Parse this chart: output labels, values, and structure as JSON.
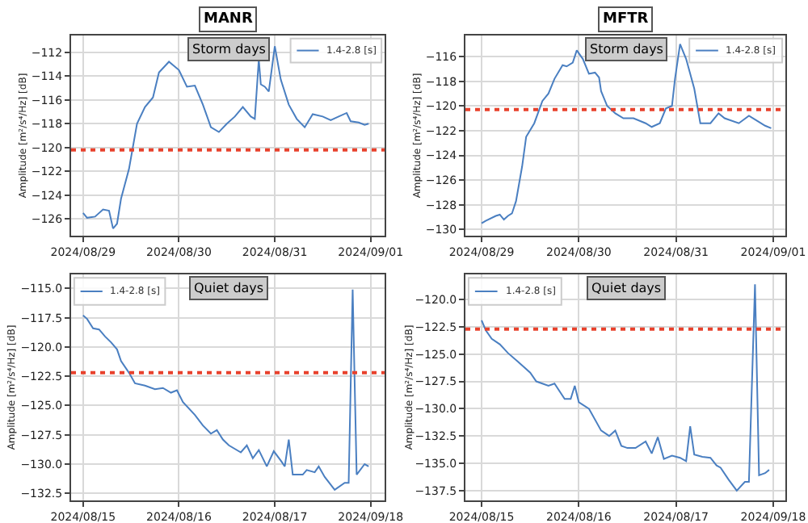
{
  "chart_data": [
    {
      "type": "line",
      "title": "MANR",
      "ylabel": "Amplitude [m²/s⁴/Hz] [dB]",
      "annotations": [
        "Storm days"
      ],
      "legend": "top right",
      "grid": true,
      "xlim": [
        "2024-08-28T21:00",
        "2024-09-01T03:30"
      ],
      "ylim": [
        -127.4,
        -110.6
      ],
      "xticks": [
        {
          "value": "2024-08-29",
          "label": "2024/08/29"
        },
        {
          "value": "2024-08-30",
          "label": "2024/08/30"
        },
        {
          "value": "2024-08-31",
          "label": "2024/08/31"
        },
        {
          "value": "2024-09-01",
          "label": "2024/09/01"
        }
      ],
      "yticks": [
        {
          "value": -126,
          "label": "−126"
        },
        {
          "value": -124,
          "label": "−124"
        },
        {
          "value": -122,
          "label": "−122"
        },
        {
          "value": -120,
          "label": "−120"
        },
        {
          "value": -118,
          "label": "−118"
        },
        {
          "value": -116,
          "label": "−116"
        },
        {
          "value": -114,
          "label": "−114"
        },
        {
          "value": -112,
          "label": "−112"
        }
      ],
      "ref_lines": [
        {
          "axis": "y",
          "value": -120.2,
          "color": "#e8412c",
          "line_style": "dotted"
        }
      ],
      "series": [
        {
          "name": "1.4-2.8 [s]",
          "color": "#4a7fc1",
          "x": [
            "2024-08-29T00:00",
            "2024-08-29T01:00",
            "2024-08-29T03:00",
            "2024-08-29T05:00",
            "2024-08-29T06:30",
            "2024-08-29T07:30",
            "2024-08-29T08:30",
            "2024-08-29T09:30",
            "2024-08-29T11:30",
            "2024-08-29T13:30",
            "2024-08-29T15:30",
            "2024-08-29T17:30",
            "2024-08-29T19:00",
            "2024-08-29T21:30",
            "2024-08-30T00:00",
            "2024-08-30T02:00",
            "2024-08-30T04:00",
            "2024-08-30T06:00",
            "2024-08-30T08:00",
            "2024-08-30T10:00",
            "2024-08-30T12:00",
            "2024-08-30T14:00",
            "2024-08-30T16:00",
            "2024-08-30T18:00",
            "2024-08-30T19:00",
            "2024-08-30T20:00",
            "2024-08-30T20:30",
            "2024-08-30T21:30",
            "2024-08-30T22:30",
            "2024-08-31T00:00",
            "2024-08-31T01:30",
            "2024-08-31T03:30",
            "2024-08-31T05:30",
            "2024-08-31T07:30",
            "2024-08-31T09:30",
            "2024-08-31T12:00",
            "2024-08-31T14:00",
            "2024-08-31T16:00",
            "2024-08-31T18:00",
            "2024-08-31T19:00",
            "2024-08-31T21:00",
            "2024-08-31T22:30",
            "2024-08-31T23:30"
          ],
          "values": [
            -125.5,
            -125.9,
            -125.8,
            -125.2,
            -125.3,
            -126.8,
            -126.4,
            -124.3,
            -121.8,
            -118.0,
            -116.6,
            -115.8,
            -113.7,
            -112.8,
            -113.5,
            -114.9,
            -114.8,
            -116.4,
            -118.3,
            -118.7,
            -118.0,
            -117.4,
            -116.6,
            -117.4,
            -117.6,
            -112.6,
            -114.7,
            -114.9,
            -115.3,
            -111.5,
            -114.3,
            -116.4,
            -117.6,
            -118.3,
            -117.2,
            -117.4,
            -117.7,
            -117.4,
            -117.1,
            -117.8,
            -117.9,
            -118.1,
            -118.0
          ]
        }
      ]
    },
    {
      "type": "line",
      "title": "MFTR",
      "ylabel": "Amplitude [m²/s⁴/Hz] [dB]",
      "annotations": [
        "Storm days"
      ],
      "legend": "top right",
      "grid": true,
      "xlim": [
        "2024-08-28T20:00",
        "2024-09-01T03:00"
      ],
      "ylim": [
        -130.5,
        -114.3
      ],
      "xticks": [
        {
          "value": "2024-08-29",
          "label": "2024/08/29"
        },
        {
          "value": "2024-08-30",
          "label": "2024/08/30"
        },
        {
          "value": "2024-08-31",
          "label": "2024/08/31"
        },
        {
          "value": "2024-09-01",
          "label": "2024/09/01"
        }
      ],
      "yticks": [
        {
          "value": -130,
          "label": "−130"
        },
        {
          "value": -128,
          "label": "−128"
        },
        {
          "value": -126,
          "label": "−126"
        },
        {
          "value": -124,
          "label": "−124"
        },
        {
          "value": -122,
          "label": "−122"
        },
        {
          "value": -120,
          "label": "−120"
        },
        {
          "value": -118,
          "label": "−118"
        },
        {
          "value": -116,
          "label": "−116"
        }
      ],
      "ref_lines": [
        {
          "axis": "y",
          "value": -120.3,
          "color": "#e8412c",
          "line_style": "dotted"
        }
      ],
      "series": [
        {
          "name": "1.4-2.8 [s]",
          "color": "#4a7fc1",
          "x": [
            "2024-08-29T00:00",
            "2024-08-29T01:00",
            "2024-08-29T03:30",
            "2024-08-29T04:30",
            "2024-08-29T05:30",
            "2024-08-29T06:30",
            "2024-08-29T07:30",
            "2024-08-29T08:30",
            "2024-08-29T10:00",
            "2024-08-29T11:00",
            "2024-08-29T13:00",
            "2024-08-29T15:00",
            "2024-08-29T16:30",
            "2024-08-29T18:00",
            "2024-08-29T20:00",
            "2024-08-29T21:00",
            "2024-08-29T22:30",
            "2024-08-29T23:30",
            "2024-08-30T01:00",
            "2024-08-30T02:30",
            "2024-08-30T04:00",
            "2024-08-30T05:00",
            "2024-08-30T05:30",
            "2024-08-30T07:00",
            "2024-08-30T09:00",
            "2024-08-30T11:00",
            "2024-08-30T13:30",
            "2024-08-30T16:30",
            "2024-08-30T18:00",
            "2024-08-30T20:00",
            "2024-08-30T21:30",
            "2024-08-30T23:00",
            "2024-08-30T23:45",
            "2024-08-31T01:00",
            "2024-08-31T02:30",
            "2024-08-31T04:30",
            "2024-08-31T06:00",
            "2024-08-31T08:30",
            "2024-08-31T10:30",
            "2024-08-31T12:00",
            "2024-08-31T15:30",
            "2024-08-31T18:00",
            "2024-08-31T20:00",
            "2024-08-31T22:00",
            "2024-08-31T23:30"
          ],
          "values": [
            -129.5,
            -129.3,
            -128.9,
            -128.8,
            -129.2,
            -128.9,
            -128.7,
            -127.7,
            -124.9,
            -122.5,
            -121.4,
            -119.6,
            -119.0,
            -117.8,
            -116.7,
            -116.8,
            -116.5,
            -115.5,
            -116.2,
            -117.4,
            -117.3,
            -117.7,
            -118.8,
            -120.0,
            -120.6,
            -121.0,
            -121.0,
            -121.4,
            -121.7,
            -121.4,
            -120.2,
            -120.0,
            -117.8,
            -115.0,
            -116.2,
            -118.6,
            -121.4,
            -121.4,
            -120.6,
            -121.0,
            -121.4,
            -120.8,
            -121.2,
            -121.6,
            -121.8
          ]
        }
      ]
    },
    {
      "type": "line",
      "ylabel": "Amplitude [m²/s⁴/Hz] [dB]",
      "annotations": [
        "Quiet days"
      ],
      "legend": "top left",
      "grid": true,
      "xlim": [
        "2024-08-14T21:00",
        "2024-08-18T03:30"
      ],
      "ylim": [
        -133.1,
        -113.8
      ],
      "xticks": [
        {
          "value": "2024-08-15",
          "label": "2024/08/15"
        },
        {
          "value": "2024-08-16",
          "label": "2024/08/16"
        },
        {
          "value": "2024-08-17",
          "label": "2024/08/17"
        },
        {
          "value": "2024-08-18",
          "label": "2024/09/18"
        }
      ],
      "yticks": [
        {
          "value": -132.5,
          "label": "−132.5"
        },
        {
          "value": -130,
          "label": "−130.0"
        },
        {
          "value": -127.5,
          "label": "−127.5"
        },
        {
          "value": -125,
          "label": "−125.0"
        },
        {
          "value": -122.5,
          "label": "−122.5"
        },
        {
          "value": -120,
          "label": "−120.0"
        },
        {
          "value": -117.5,
          "label": "−117.5"
        },
        {
          "value": -115,
          "label": "−115.0"
        }
      ],
      "ref_lines": [
        {
          "axis": "y",
          "value": -122.2,
          "color": "#e8412c",
          "line_style": "dotted"
        }
      ],
      "series": [
        {
          "name": "1.4-2.8 [s]",
          "color": "#4a7fc1",
          "x": [
            "2024-08-15T00:00",
            "2024-08-15T01:00",
            "2024-08-15T02:30",
            "2024-08-15T04:00",
            "2024-08-15T05:30",
            "2024-08-15T07:00",
            "2024-08-15T08:30",
            "2024-08-15T09:30",
            "2024-08-15T11:30",
            "2024-08-15T13:00",
            "2024-08-15T15:30",
            "2024-08-15T18:00",
            "2024-08-15T20:00",
            "2024-08-15T22:00",
            "2024-08-15T23:30",
            "2024-08-16T01:00",
            "2024-08-16T04:00",
            "2024-08-16T06:00",
            "2024-08-16T08:00",
            "2024-08-16T09:30",
            "2024-08-16T11:00",
            "2024-08-16T12:30",
            "2024-08-16T15:30",
            "2024-08-16T17:00",
            "2024-08-16T18:30",
            "2024-08-16T20:00",
            "2024-08-16T22:00",
            "2024-08-16T23:45",
            "2024-08-17T01:30",
            "2024-08-17T02:30",
            "2024-08-17T03:30",
            "2024-08-17T04:30",
            "2024-08-17T07:00",
            "2024-08-17T08:00",
            "2024-08-17T10:00",
            "2024-08-17T11:00",
            "2024-08-17T12:30",
            "2024-08-17T15:00",
            "2024-08-17T17:30",
            "2024-08-17T18:30",
            "2024-08-17T19:30",
            "2024-08-17T20:30",
            "2024-08-17T22:30",
            "2024-08-17T23:30"
          ],
          "values": [
            -117.3,
            -117.6,
            -118.4,
            -118.5,
            -119.1,
            -119.6,
            -120.2,
            -121.2,
            -122.2,
            -123.1,
            -123.3,
            -123.6,
            -123.5,
            -123.9,
            -123.7,
            -124.7,
            -125.8,
            -126.7,
            -127.4,
            -127.1,
            -127.9,
            -128.4,
            -129.0,
            -128.4,
            -129.5,
            -128.8,
            -130.2,
            -128.9,
            -129.7,
            -130.2,
            -127.9,
            -130.9,
            -130.9,
            -130.5,
            -130.7,
            -130.2,
            -131.1,
            -132.2,
            -131.6,
            -131.6,
            -115.1,
            -130.9,
            -130.0,
            -130.2
          ]
        }
      ]
    },
    {
      "type": "line",
      "ylabel": "Amplitude [m²/s⁴/Hz] [dB]",
      "annotations": [
        "Quiet days"
      ],
      "legend": "top left",
      "grid": true,
      "xlim": [
        "2024-08-14T20:00",
        "2024-08-18T03:00"
      ],
      "ylim": [
        -138.4,
        -117.7
      ],
      "xticks": [
        {
          "value": "2024-08-15",
          "label": "2024/08/15"
        },
        {
          "value": "2024-08-16",
          "label": "2024/08/16"
        },
        {
          "value": "2024-08-17",
          "label": "2024/08/17"
        },
        {
          "value": "2024-08-18",
          "label": "2024/09/18"
        }
      ],
      "yticks": [
        {
          "value": -137.5,
          "label": "−137.5"
        },
        {
          "value": -135,
          "label": "−135.0"
        },
        {
          "value": -132.5,
          "label": "−132.5"
        },
        {
          "value": -130,
          "label": "−130.0"
        },
        {
          "value": -127.5,
          "label": "−127.5"
        },
        {
          "value": -125,
          "label": "−125.0"
        },
        {
          "value": -122.5,
          "label": "−122.5"
        },
        {
          "value": -120,
          "label": "−120.0"
        }
      ],
      "ref_lines": [
        {
          "axis": "y",
          "value": -122.7,
          "color": "#e8412c",
          "line_style": "dotted"
        }
      ],
      "series": [
        {
          "name": "1.4-2.8 [s]",
          "color": "#4a7fc1",
          "x": [
            "2024-08-15T00:00",
            "2024-08-15T01:00",
            "2024-08-15T02:30",
            "2024-08-15T04:30",
            "2024-08-15T06:30",
            "2024-08-15T09:00",
            "2024-08-15T12:00",
            "2024-08-15T13:30",
            "2024-08-15T16:30",
            "2024-08-15T18:00",
            "2024-08-15T20:30",
            "2024-08-15T22:00",
            "2024-08-15T23:00",
            "2024-08-16T00:00",
            "2024-08-16T02:30",
            "2024-08-16T05:30",
            "2024-08-16T07:30",
            "2024-08-16T09:00",
            "2024-08-16T10:30",
            "2024-08-16T12:00",
            "2024-08-16T14:00",
            "2024-08-16T16:30",
            "2024-08-16T18:00",
            "2024-08-16T19:30",
            "2024-08-16T21:00",
            "2024-08-16T23:00",
            "2024-08-17T01:00",
            "2024-08-17T02:30",
            "2024-08-17T03:30",
            "2024-08-17T04:30",
            "2024-08-17T06:30",
            "2024-08-17T08:30",
            "2024-08-17T10:00",
            "2024-08-17T11:00",
            "2024-08-17T13:00",
            "2024-08-17T15:00",
            "2024-08-17T17:00",
            "2024-08-17T18:00",
            "2024-08-17T19:30",
            "2024-08-17T20:30",
            "2024-08-17T22:00",
            "2024-08-17T23:00"
          ],
          "values": [
            -121.9,
            -122.8,
            -123.6,
            -124.1,
            -124.9,
            -125.7,
            -126.7,
            -127.5,
            -127.9,
            -127.7,
            -129.1,
            -129.1,
            -127.9,
            -129.4,
            -130.0,
            -132.0,
            -132.5,
            -132.0,
            -133.4,
            -133.6,
            -133.6,
            -133.0,
            -134.1,
            -132.6,
            -134.6,
            -134.3,
            -134.5,
            -134.8,
            -131.6,
            -134.2,
            -134.4,
            -134.5,
            -135.2,
            -135.4,
            -136.5,
            -137.5,
            -136.7,
            -136.7,
            -118.6,
            -136.1,
            -135.9,
            -135.6
          ]
        }
      ]
    }
  ]
}
